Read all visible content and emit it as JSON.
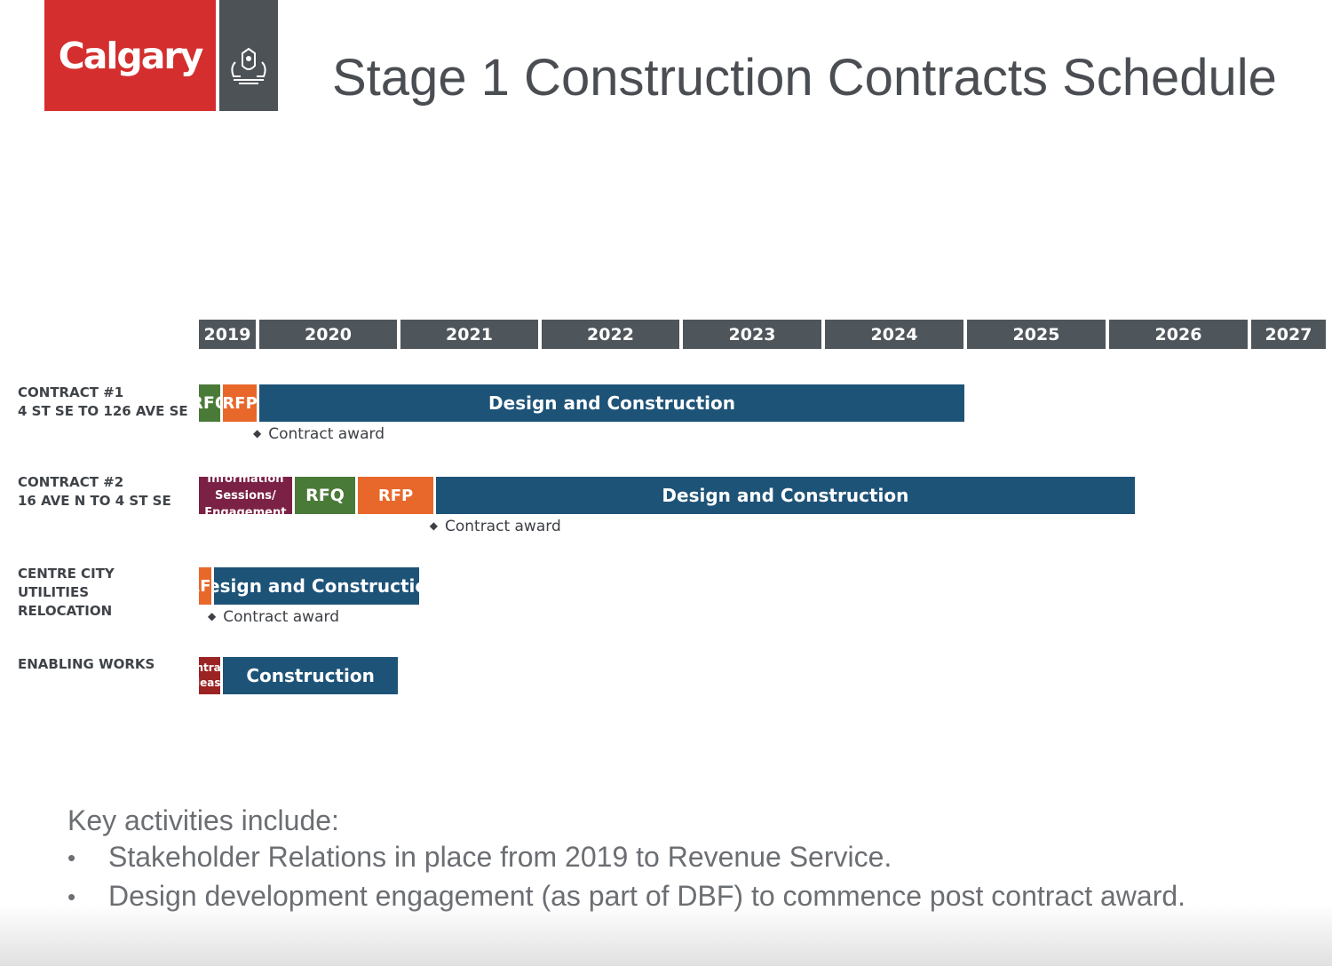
{
  "logo": {
    "wordmark": "Calgary",
    "crest_icon": "city-crest-icon"
  },
  "title": "Stage 1 Construction Contracts Schedule",
  "years": [
    "2019",
    "2020",
    "2021",
    "2022",
    "2023",
    "2024",
    "2025",
    "2026",
    "2027"
  ],
  "rows": [
    {
      "label_lines": [
        "CONTRACT #1",
        "4 ST SE TO 126 AVE SE"
      ],
      "phases": [
        {
          "label": "RFQ",
          "type": "rfq",
          "start": 2019.0,
          "end": 2019.4
        },
        {
          "label": "RFP",
          "type": "rfp",
          "start": 2019.4,
          "end": 2020.0
        },
        {
          "label": "Design and Construction",
          "type": "design-construction",
          "start": 2020.0,
          "end": 2025.0
        }
      ],
      "milestone": {
        "label": "Contract award",
        "at": 2020.0
      }
    },
    {
      "label_lines": [
        "CONTRACT #2",
        "16 AVE N TO 4 ST SE"
      ],
      "phases": [
        {
          "label": "Information Sessions/ Engagement",
          "type": "info",
          "start": 2019.0,
          "end": 2020.25
        },
        {
          "label": "RFQ",
          "type": "rfq",
          "start": 2020.25,
          "end": 2020.7
        },
        {
          "label": "RFP",
          "type": "rfp",
          "start": 2020.7,
          "end": 2021.25
        },
        {
          "label": "Design and Construction",
          "type": "design-construction",
          "start": 2021.25,
          "end": 2026.2
        }
      ],
      "milestone": {
        "label": "Contract award",
        "at": 2021.25
      }
    },
    {
      "label_lines": [
        "CENTRE CITY",
        "UTILITIES",
        "RELOCATION"
      ],
      "phases": [
        {
          "label": "RFP",
          "type": "rfp",
          "start": 2019.0,
          "end": 2019.25
        },
        {
          "label": "Design and Construction",
          "type": "design-construction",
          "start": 2019.25,
          "end": 2021.15
        }
      ],
      "milestone": {
        "label": "Contract award",
        "at": 2019.25
      }
    },
    {
      "label_lines": [
        "ENABLING WORKS"
      ],
      "phases": [
        {
          "label": "Contracts released",
          "type": "contracts-released",
          "start": 2019.0,
          "end": 2019.4
        },
        {
          "label": "Construction",
          "type": "construction",
          "start": 2019.4,
          "end": 2021.0
        }
      ]
    }
  ],
  "key_activities": {
    "heading": "Key activities include:",
    "items": [
      "Stakeholder Relations in place from 2019 to Revenue Service.",
      "Design development engagement (as part of DBF) to commence post contract award."
    ]
  },
  "colors": {
    "brand_red": "#d42e2e",
    "header_grey": "#4f565b",
    "rfq": "#4a7a38",
    "rfp": "#e8682b",
    "design_construction": "#1e5378",
    "info_sessions": "#7b2145",
    "contracts_released": "#9c2323"
  }
}
